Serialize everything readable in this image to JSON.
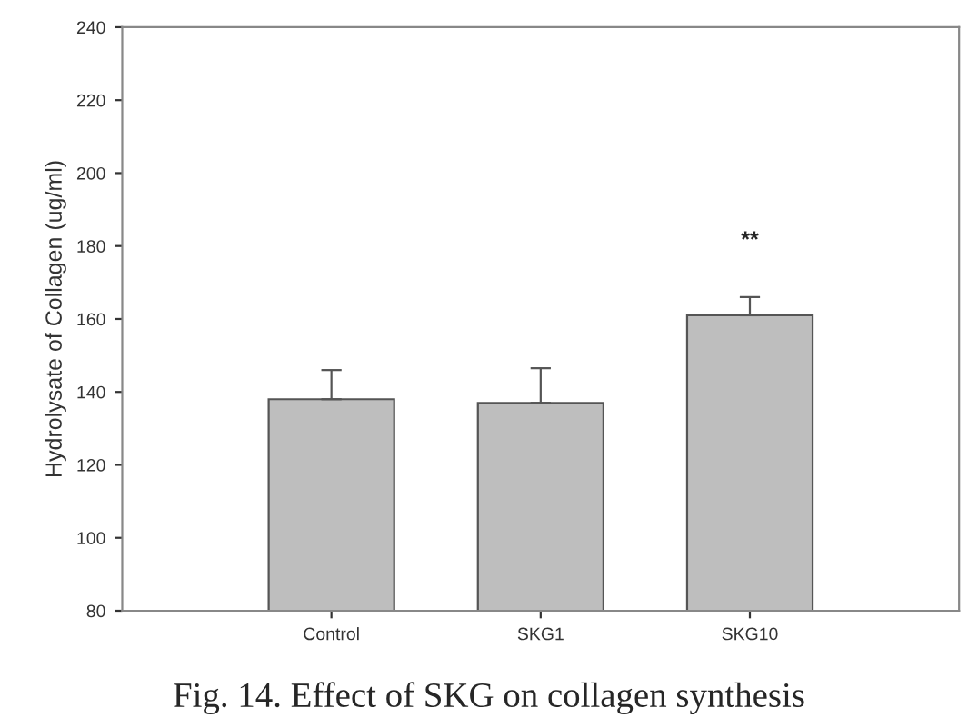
{
  "chart_data": {
    "type": "bar",
    "ylabel": "Hydrolysate of Collagen (ug/ml)",
    "categories": [
      "Control",
      "SKG1",
      "SKG10"
    ],
    "values": [
      138,
      137,
      161
    ],
    "errors": [
      [
        138,
        146
      ],
      [
        137,
        146.5
      ],
      [
        161,
        166
      ]
    ],
    "color": "#bebebe",
    "ylim": [
      80,
      240
    ],
    "yticks": [
      80,
      100,
      120,
      140,
      160,
      180,
      200,
      220,
      240
    ],
    "grid": false,
    "legend": false,
    "annotations": [
      "**",
      "Fig. 14. Effect of SKG on collagen synthesis"
    ]
  }
}
